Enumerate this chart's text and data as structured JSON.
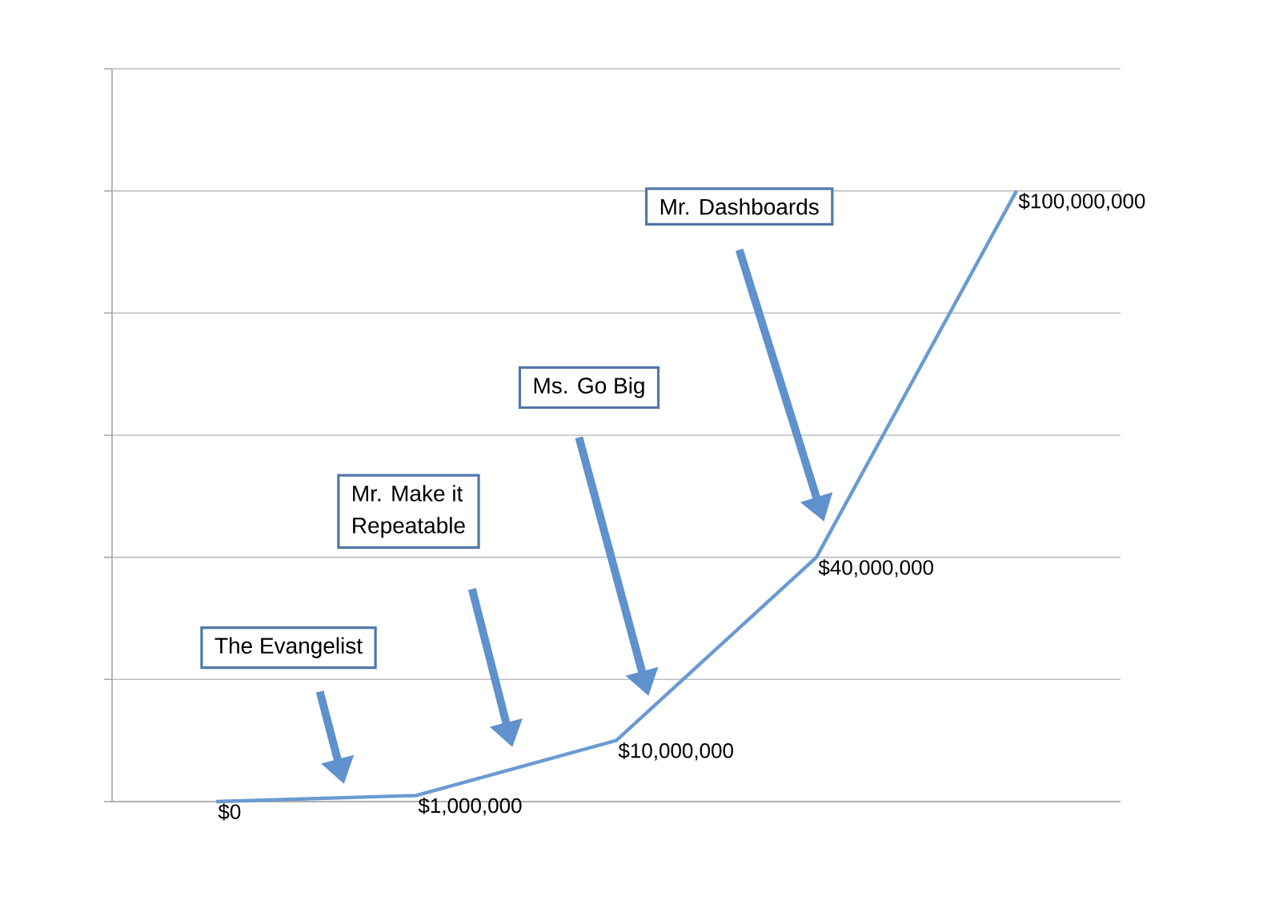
{
  "chart_data": {
    "type": "line",
    "categories": [
      null,
      null,
      null,
      null,
      null
    ],
    "series": [
      {
        "color": "#6a9ad2",
        "values": [
          0,
          1000000,
          10000000,
          40000000,
          100000000
        ],
        "value_labels": [
          "$0",
          "$1,000,000",
          "$10,000,000",
          "$40,000,000",
          "$100,000,000"
        ]
      }
    ],
    "ylim": [
      0,
      120000000
    ],
    "yticks": [
      {
        "value": 0,
        "label": null
      },
      {
        "value": 20000000,
        "label": null
      },
      {
        "value": 40000000,
        "label": null
      },
      {
        "value": 60000000,
        "label": null
      },
      {
        "value": 80000000,
        "label": null
      },
      {
        "value": 100000000,
        "label": null
      },
      {
        "value": 120000000,
        "label": null
      }
    ],
    "grid": "y",
    "marker": "none",
    "line_style": "solid",
    "annotations": [
      "The Evangelist",
      "Mr. Make it\nRepeatable",
      "Ms. Go Big",
      "Mr. Dashboards"
    ]
  }
}
